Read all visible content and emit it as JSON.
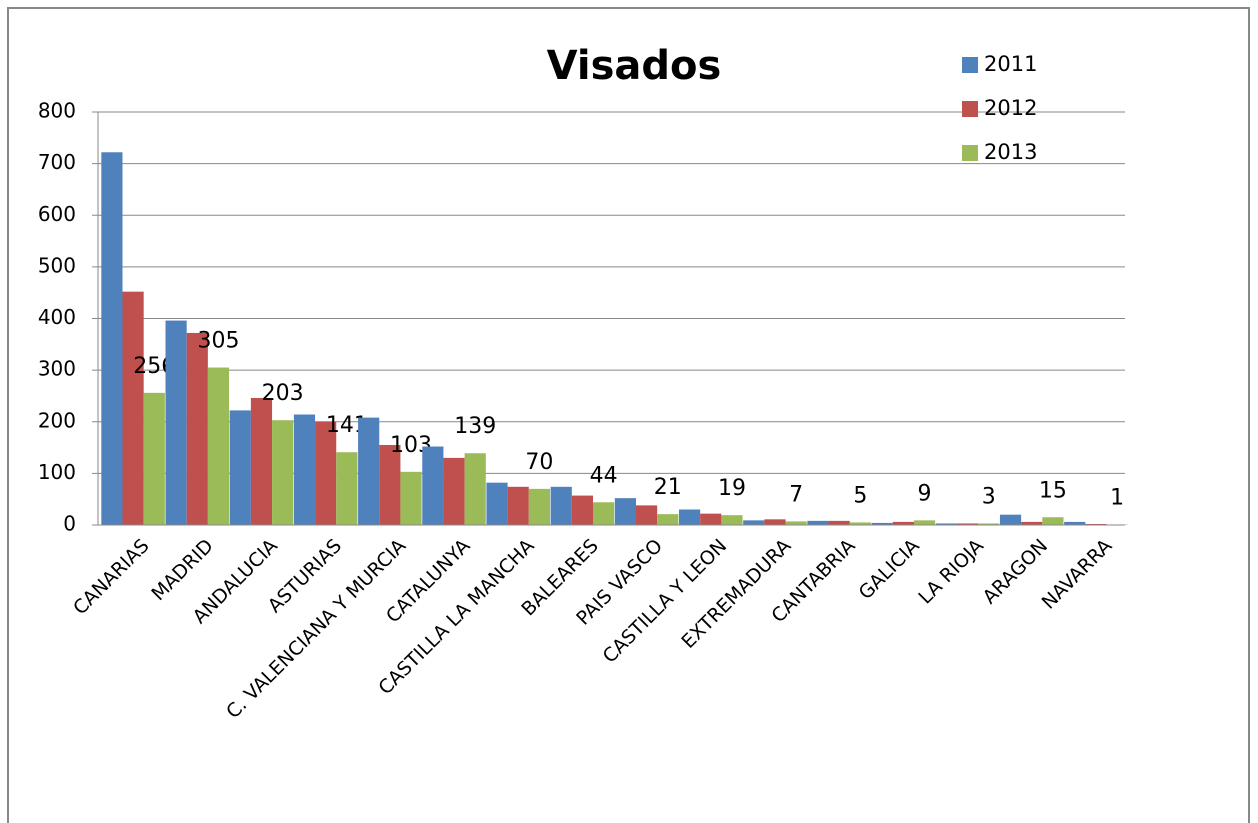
{
  "chart_data": {
    "type": "bar",
    "title": "Visados",
    "categories": [
      "CANARIAS",
      "MADRID",
      "ANDALUCIA",
      "ASTURIAS",
      "C. VALENCIANA Y MURCIA",
      "CATALUNYA",
      "CASTILLA LA MANCHA",
      "BALEARES",
      "PAIS VASCO",
      "CASTILLA Y LEON",
      "EXTREMADURA",
      "CANTABRIA",
      "GALICIA",
      "LA RIOJA",
      "ARAGON",
      "NAVARRA"
    ],
    "series": [
      {
        "name": "2011",
        "color": "#4f81bd",
        "values": [
          722,
          396,
          222,
          214,
          208,
          152,
          82,
          74,
          52,
          30,
          9,
          8,
          4,
          3,
          20,
          6
        ]
      },
      {
        "name": "2012",
        "color": "#c0504d",
        "values": [
          452,
          372,
          246,
          200,
          155,
          130,
          74,
          57,
          38,
          22,
          11,
          8,
          6,
          3,
          6,
          2
        ]
      },
      {
        "name": "2013",
        "color": "#9bbb59",
        "values": [
          256,
          305,
          203,
          141,
          103,
          139,
          70,
          44,
          21,
          19,
          7,
          5,
          9,
          3,
          15,
          1
        ],
        "data_labels": true
      }
    ],
    "ylim": [
      0,
      800
    ],
    "yticks": [
      0,
      100,
      200,
      300,
      400,
      500,
      600,
      700,
      800
    ],
    "grid": true,
    "legend": "top-right"
  }
}
